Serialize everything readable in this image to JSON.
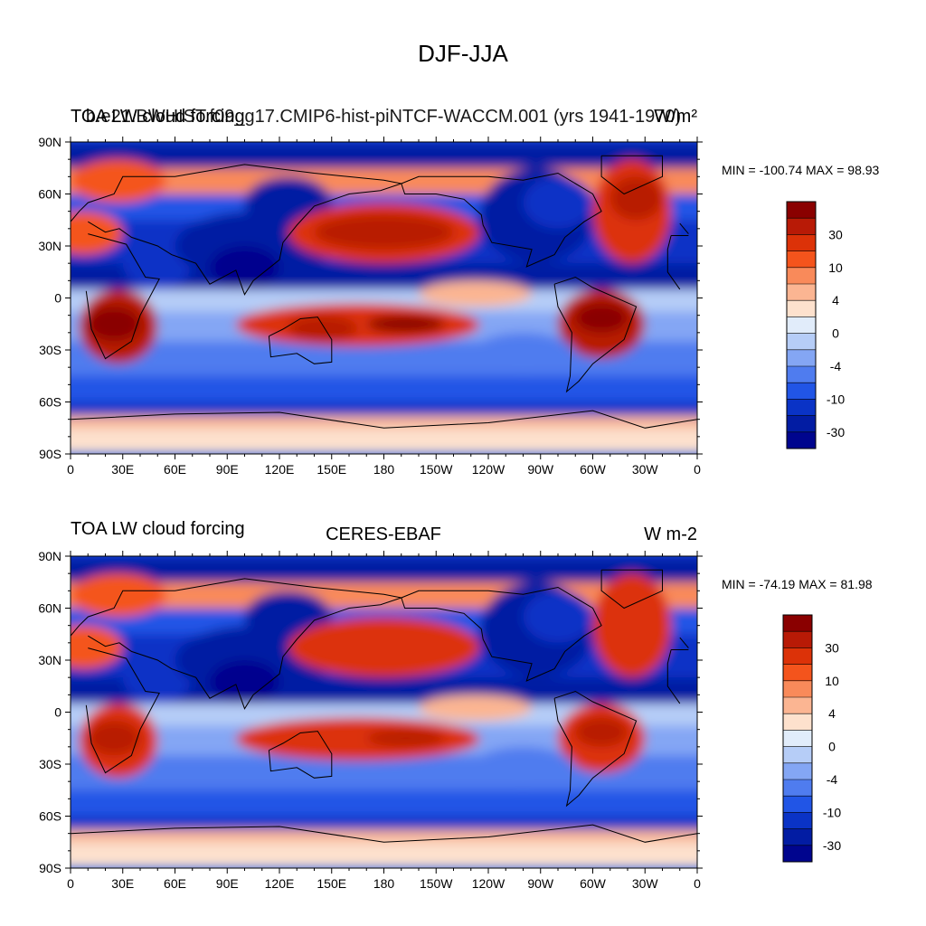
{
  "chart_data": {
    "type": "heatmap",
    "title": "DJF-JJA",
    "colorbar_levels": [
      "30",
      "10",
      "4",
      "0",
      "-4",
      "-10",
      "-30"
    ],
    "colorbar_colors": [
      "#8a0000",
      "#b81a06",
      "#dc3208",
      "#f4541c",
      "#f98a5a",
      "#fbb592",
      "#fde1cd",
      "#e1ecfa",
      "#b6cdf7",
      "#84a6f4",
      "#4f7cef",
      "#2155e6",
      "#0a33c6",
      "#021ca3",
      "#00058e"
    ],
    "lat_ticks": [
      "90N",
      "60N",
      "30N",
      "0",
      "30S",
      "60S",
      "90S"
    ],
    "lon_ticks": [
      "0",
      "30E",
      "60E",
      "90E",
      "120E",
      "150E",
      "180",
      "150W",
      "120W",
      "90W",
      "60W",
      "30W",
      "0"
    ],
    "x_range": [
      0,
      360
    ],
    "y_range": [
      -90,
      90
    ],
    "panels": [
      {
        "left_title": "TOA LW cloud forcing",
        "case_title": "b.e21.BWHIST.f09_g17.CMIP6-hist-piNTCF-WACCM.001 (yrs 1941-1970)",
        "units": "W/m²",
        "min_max": "MIN = -100.74 MAX =  98.93"
      },
      {
        "left_title": "TOA LW cloud forcing",
        "case_title": "CERES-EBAF",
        "units": "W m-2",
        "min_max": "MIN = -74.19 MAX =  81.98"
      }
    ]
  }
}
